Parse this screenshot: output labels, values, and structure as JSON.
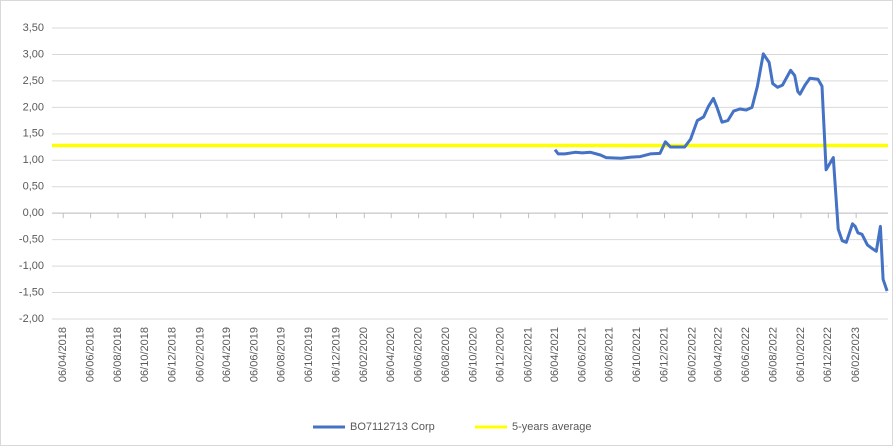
{
  "chart_data": {
    "type": "line",
    "ylim": [
      -2,
      3.5
    ],
    "yticks": [
      {
        "value": -2,
        "label": "-2,00"
      },
      {
        "value": -1.5,
        "label": "-1,50"
      },
      {
        "value": -1,
        "label": "-1,00"
      },
      {
        "value": -0.5,
        "label": "-0,50"
      },
      {
        "value": 0,
        "label": "0,00"
      },
      {
        "value": 0.5,
        "label": "0,50"
      },
      {
        "value": 1,
        "label": "1,00"
      },
      {
        "value": 1.5,
        "label": "1,50"
      },
      {
        "value": 2,
        "label": "2,00"
      },
      {
        "value": 2.5,
        "label": "2,50"
      },
      {
        "value": 3,
        "label": "3,00"
      },
      {
        "value": 3.5,
        "label": "3,50"
      }
    ],
    "xlim": [
      "12/03/2018",
      "18/04/2023"
    ],
    "xticks": [
      "06/04/2018",
      "06/06/2018",
      "06/08/2018",
      "06/10/2018",
      "06/12/2018",
      "06/02/2019",
      "06/04/2019",
      "06/06/2019",
      "06/08/2019",
      "06/10/2019",
      "06/12/2019",
      "06/02/2020",
      "06/04/2020",
      "06/06/2020",
      "06/08/2020",
      "06/10/2020",
      "06/12/2020",
      "06/02/2021",
      "06/04/2021",
      "06/06/2021",
      "06/08/2021",
      "06/10/2021",
      "06/12/2021",
      "06/02/2022",
      "06/04/2022",
      "06/06/2022",
      "06/08/2022",
      "06/10/2022",
      "06/12/2022",
      "06/02/2023"
    ],
    "grid": true,
    "legend": "bottom",
    "series": [
      {
        "name": "BO7112713 Corp",
        "color": "#4472c4",
        "x": [
          "06/04/2021",
          "13/04/2021",
          "28/04/2021",
          "21/05/2021",
          "06/06/2021",
          "24/06/2021",
          "16/07/2021",
          "29/07/2021",
          "31/08/2021",
          "23/09/2021",
          "13/10/2021",
          "04/11/2021",
          "26/11/2021",
          "08/12/2021",
          "19/12/2021",
          "20/01/2022",
          "02/02/2022",
          "17/02/2022",
          "03/03/2022",
          "14/03/2022",
          "25/03/2022",
          "02/04/2022",
          "13/04/2022",
          "26/04/2022",
          "09/05/2022",
          "23/05/2022",
          "06/06/2022",
          "19/06/2022",
          "01/07/2022",
          "14/07/2022",
          "27/07/2022",
          "04/08/2022",
          "15/08/2022",
          "26/08/2022",
          "13/09/2022",
          "22/09/2022",
          "29/09/2022",
          "04/10/2022",
          "15/10/2022",
          "26/10/2022",
          "13/11/2022",
          "22/11/2022",
          "01/12/2022",
          "17/12/2022",
          "28/12/2022",
          "06/01/2023",
          "15/01/2023",
          "29/01/2023",
          "04/02/2023",
          "10/02/2023",
          "19/02/2023",
          "03/03/2023",
          "11/03/2023",
          "23/03/2023",
          "01/04/2023",
          "07/04/2023",
          "16/04/2023"
        ],
        "values": [
          1.2,
          1.12,
          1.12,
          1.15,
          1.14,
          1.15,
          1.1,
          1.05,
          1.04,
          1.06,
          1.07,
          1.12,
          1.13,
          1.35,
          1.25,
          1.25,
          1.4,
          1.75,
          1.82,
          2.02,
          2.17,
          2.0,
          1.72,
          1.75,
          1.93,
          1.97,
          1.95,
          2.0,
          2.4,
          3.01,
          2.85,
          2.45,
          2.38,
          2.42,
          2.7,
          2.6,
          2.3,
          2.25,
          2.42,
          2.55,
          2.53,
          2.4,
          0.82,
          1.05,
          -0.3,
          -0.52,
          -0.55,
          -0.2,
          -0.25,
          -0.37,
          -0.4,
          -0.6,
          -0.65,
          -0.72,
          -0.25,
          -1.25,
          -1.47
        ]
      },
      {
        "name": "5-years average",
        "color": "#ffff00",
        "x": [
          "12/03/2018",
          "18/04/2023"
        ],
        "values": [
          1.28,
          1.28
        ]
      }
    ]
  }
}
